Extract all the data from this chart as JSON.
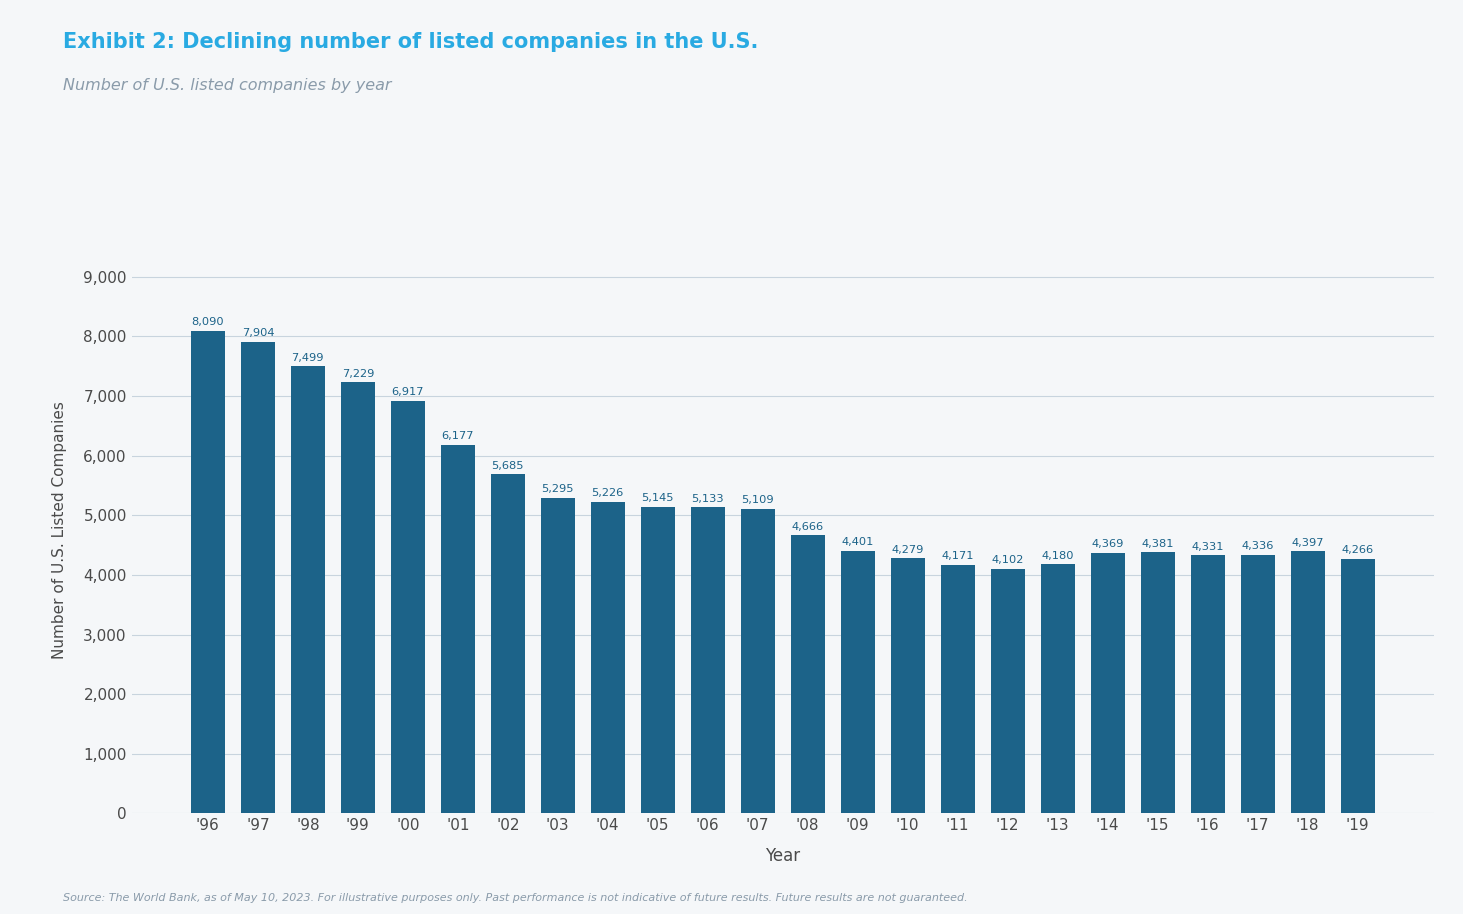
{
  "title": "Exhibit 2: Declining number of listed companies in the U.S.",
  "subtitle": "Number of U.S. listed companies by year",
  "xlabel": "Year",
  "ylabel": "Number of U.S. Listed Companies",
  "source": "Source: The World Bank, as of May 10, 2023. For illustrative purposes only. Past performance is not indicative of future results. Future results are not guaranteed.",
  "years": [
    "'96",
    "'97",
    "'98",
    "'99",
    "'00",
    "'01",
    "'02",
    "'03",
    "'04",
    "'05",
    "'06",
    "'07",
    "'08",
    "'09",
    "'10",
    "'11",
    "'12",
    "'13",
    "'14",
    "'15",
    "'16",
    "'17",
    "'18",
    "'19"
  ],
  "values": [
    8090,
    7904,
    7499,
    7229,
    6917,
    6177,
    5685,
    5295,
    5226,
    5145,
    5133,
    5109,
    4666,
    4401,
    4279,
    4171,
    4102,
    4180,
    4369,
    4381,
    4331,
    4336,
    4397,
    4266
  ],
  "bar_color": "#1c6389",
  "title_color": "#29aae2",
  "subtitle_color": "#8a9baa",
  "ylabel_color": "#4a4a4a",
  "label_color": "#1c6389",
  "source_color": "#8a9baa",
  "bg_color": "#f5f7f9",
  "grid_color": "#c8d4de",
  "tick_color": "#4a4a4a",
  "ylim": [
    0,
    9500
  ],
  "yticks": [
    0,
    1000,
    2000,
    3000,
    4000,
    5000,
    6000,
    7000,
    8000,
    9000
  ],
  "bar_width": 0.68
}
